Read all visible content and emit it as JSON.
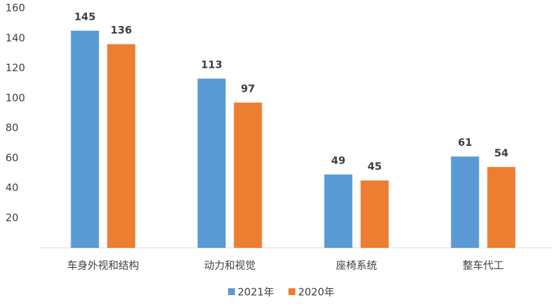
{
  "chart_data": {
    "type": "bar",
    "categories": [
      "车身外视和结构",
      "动力和视觉",
      "座椅系统",
      "整车代工"
    ],
    "series": [
      {
        "name": "2021年",
        "color": "#5b9bd5",
        "values": [
          145,
          113,
          49,
          61
        ]
      },
      {
        "name": "2020年",
        "color": "#ed7d31",
        "values": [
          136,
          97,
          45,
          54
        ]
      }
    ],
    "ylim": [
      0,
      160
    ],
    "yticks": [
      20,
      40,
      60,
      80,
      100,
      120,
      140,
      160
    ],
    "grid": false,
    "legend": "bottom"
  }
}
